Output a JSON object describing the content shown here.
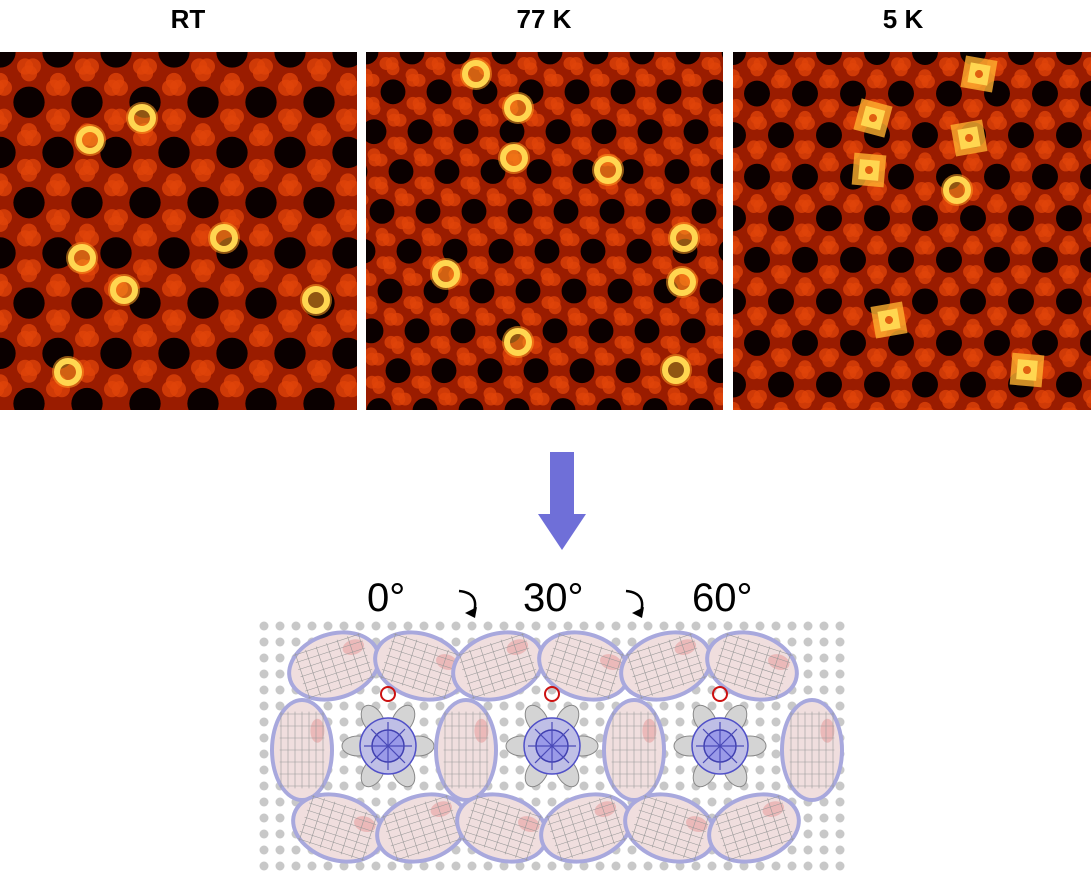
{
  "panels": [
    {
      "label": "RT"
    },
    {
      "label": "77 K"
    },
    {
      "label": "5 K"
    }
  ],
  "rotation_angles": [
    "0°",
    "30°",
    "60°"
  ],
  "colors": {
    "stm_dark": "#0a0000",
    "stm_mid": "#9a1c00",
    "stm_bright": "#ffd650",
    "arrow": "#6f6fd8",
    "lattice_dot": "#c8c8c8",
    "marker_ring": "#cc1111"
  },
  "icons": [
    "down-arrow-icon",
    "rotate-arrow-icon"
  ]
}
